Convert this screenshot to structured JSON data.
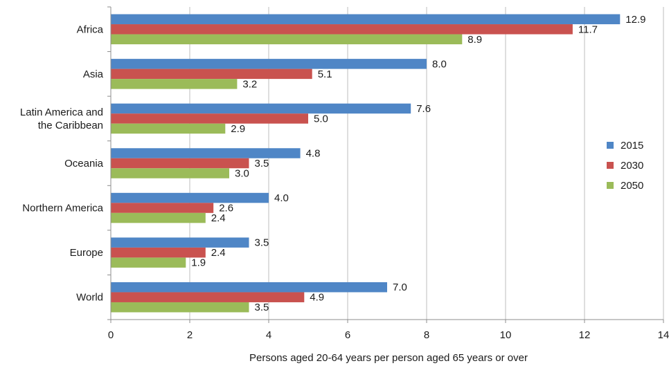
{
  "chart_data": {
    "type": "bar",
    "orientation": "horizontal",
    "categories": [
      "Africa",
      "Asia",
      "Latin America and the Caribbean",
      "Oceania",
      "Northern America",
      "Europe",
      "World"
    ],
    "category_lines": [
      [
        "Africa"
      ],
      [
        "Asia"
      ],
      [
        "Latin America and",
        "the Caribbean"
      ],
      [
        "Oceania"
      ],
      [
        "Northern America"
      ],
      [
        "Europe"
      ],
      [
        "World"
      ]
    ],
    "series": [
      {
        "name": "2015",
        "color": "#4f86c6",
        "values": [
          12.9,
          8.0,
          7.6,
          4.8,
          4.0,
          3.5,
          7.0
        ]
      },
      {
        "name": "2030",
        "color": "#c9524f",
        "values": [
          11.7,
          5.1,
          5.0,
          3.5,
          2.6,
          2.4,
          4.9
        ]
      },
      {
        "name": "2050",
        "color": "#9bbb59",
        "values": [
          8.9,
          3.2,
          2.9,
          3.0,
          2.4,
          1.9,
          3.5
        ]
      }
    ],
    "data_labels": [
      [
        "12.9",
        "8.0",
        "7.6",
        "4.8",
        "4.0",
        "3.5",
        "7.0"
      ],
      [
        "11.7",
        "5.1",
        "5.0",
        "3.5",
        "2.6",
        "2.4",
        "4.9"
      ],
      [
        "8.9",
        "3.2",
        "2.9",
        "3.0",
        "2.4",
        "1.9",
        "3.5"
      ]
    ],
    "x_ticks": [
      "0",
      "2",
      "4",
      "6",
      "8",
      "10",
      "12",
      "14"
    ],
    "xlim": [
      0,
      14
    ],
    "xlabel": "Persons aged 20-64 years per person aged 65 years or over",
    "ylabel": "",
    "title": "",
    "grid": true,
    "legend_position": "right"
  }
}
